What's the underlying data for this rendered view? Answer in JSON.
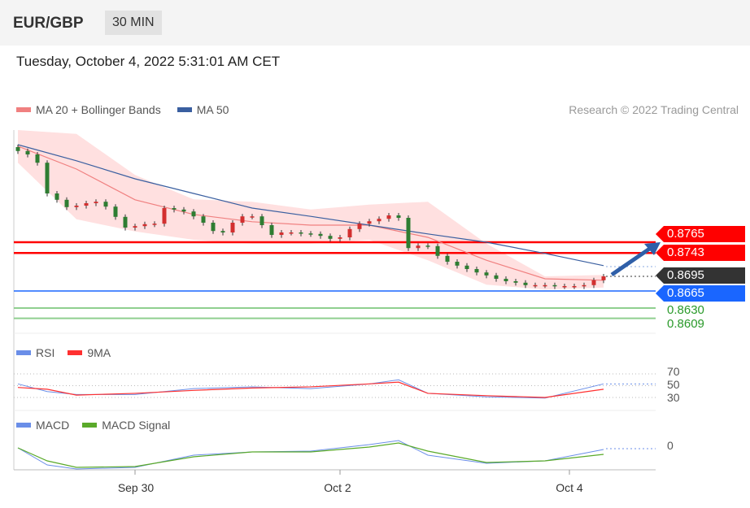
{
  "header": {
    "symbol": "EUR/GBP",
    "timeframe": "30 MIN",
    "datetime": "Tuesday, October 4, 2022 5:31:01 AM CET",
    "credit": "Research © 2022 Trading Central"
  },
  "colors": {
    "ma20": "#f08080",
    "ma50": "#3a5fa0",
    "band": "#ffe0e0",
    "up": "#2e7d32",
    "down": "#d32f2f",
    "resistance": "#ff0000",
    "support": "#1a66ff",
    "target": "#8fcf8f",
    "rsi": "#6a8ee8",
    "rsi9": "#ff3030",
    "macd": "#6a8ee8",
    "signal": "#5aaa2a"
  },
  "chart_data": [
    {
      "type": "line",
      "title": "EUR/GBP price (candlestick)",
      "legend": [
        {
          "label": "MA 20 + Bollinger Bands"
        },
        {
          "label": "MA 50"
        }
      ],
      "closes": [
        0.8952,
        0.8945,
        0.8928,
        0.8865,
        0.8852,
        0.8837,
        0.884,
        0.8845,
        0.8848,
        0.8838,
        0.8817,
        0.8795,
        0.8798,
        0.8802,
        0.8803,
        0.8835,
        0.8832,
        0.8828,
        0.8818,
        0.8805,
        0.8788,
        0.8785,
        0.8805,
        0.8818,
        0.8818,
        0.88,
        0.878,
        0.8785,
        0.8785,
        0.8783,
        0.8782,
        0.8778,
        0.8772,
        0.8775,
        0.8792,
        0.8803,
        0.8808,
        0.8813,
        0.882,
        0.8815,
        0.8753,
        0.8758,
        0.8757,
        0.8737,
        0.8725,
        0.8717,
        0.871,
        0.8703,
        0.8697,
        0.869,
        0.8685,
        0.8682,
        0.8677,
        0.8677,
        0.8677,
        0.8675,
        0.8675,
        0.8675,
        0.8677,
        0.8687,
        0.8695
      ],
      "sample_idx": [
        0,
        6,
        12,
        18,
        24,
        30,
        36,
        42,
        48,
        54,
        60
      ],
      "ma50": [
        0.8965,
        0.8932,
        0.8895,
        0.8865,
        0.8835,
        0.8818,
        0.88,
        0.8782,
        0.8765,
        0.8742,
        0.8717
      ],
      "ma20": [
        0.8962,
        0.8915,
        0.8852,
        0.8822,
        0.8807,
        0.88,
        0.88,
        0.8775,
        0.8728,
        0.869,
        0.8687
      ],
      "bb_upper": [
        0.8995,
        0.8987,
        0.8903,
        0.8853,
        0.8848,
        0.8832,
        0.8842,
        0.8848,
        0.8762,
        0.8695,
        0.8698
      ],
      "bb_lower": [
        0.8928,
        0.8812,
        0.8787,
        0.877,
        0.8762,
        0.8762,
        0.877,
        0.8728,
        0.8678,
        0.8668,
        0.8672
      ],
      "levels": [
        {
          "label": "0.8765",
          "kind": "resistance"
        },
        {
          "label": "0.8743",
          "kind": "resistance"
        },
        {
          "label": "0.8695",
          "kind": "last"
        },
        {
          "label": "0.8665",
          "kind": "support"
        },
        {
          "label": "0.8630",
          "kind": "target"
        },
        {
          "label": "0.8609",
          "kind": "target"
        }
      ],
      "x_ticks": [
        {
          "label": "Sep 30",
          "idx": 12
        },
        {
          "label": "Oct 2",
          "idx": 33
        },
        {
          "label": "Oct 4",
          "idx": 56.5
        }
      ]
    },
    {
      "type": "line",
      "title": "RSI",
      "legend": [
        {
          "label": "RSI"
        },
        {
          "label": "9MA"
        }
      ],
      "ylim": [
        30,
        70
      ],
      "ticks": [
        "70",
        "50",
        "30"
      ],
      "sample_idx": [
        0,
        3,
        6,
        12,
        18,
        24,
        30,
        36,
        39,
        42,
        48,
        54,
        60
      ],
      "rsi": [
        53,
        40,
        35,
        35,
        45,
        48,
        45,
        53,
        60,
        37,
        31,
        29,
        53
      ],
      "ma9": [
        47,
        44,
        34,
        37,
        42,
        46,
        48,
        53,
        56,
        37,
        33,
        30,
        44
      ]
    },
    {
      "type": "line",
      "title": "MACD",
      "legend": [
        {
          "label": "MACD"
        },
        {
          "label": "MACD Signal"
        }
      ],
      "ticks": [
        "0"
      ],
      "sample_idx": [
        0,
        3,
        6,
        12,
        18,
        24,
        30,
        36,
        39,
        42,
        48,
        54,
        60
      ],
      "macd": [
        0.0001,
        -0.002,
        -0.0025,
        -0.0023,
        -0.0008,
        -0.0004,
        -0.0003,
        0.0005,
        0.001,
        -0.0008,
        -0.0018,
        -0.0015,
        -0.0001
      ],
      "signal": [
        0.0001,
        -0.0015,
        -0.0023,
        -0.0022,
        -0.001,
        -0.0004,
        -0.0004,
        0.0002,
        0.0007,
        -0.0003,
        -0.0017,
        -0.0015,
        -0.0007
      ]
    }
  ]
}
